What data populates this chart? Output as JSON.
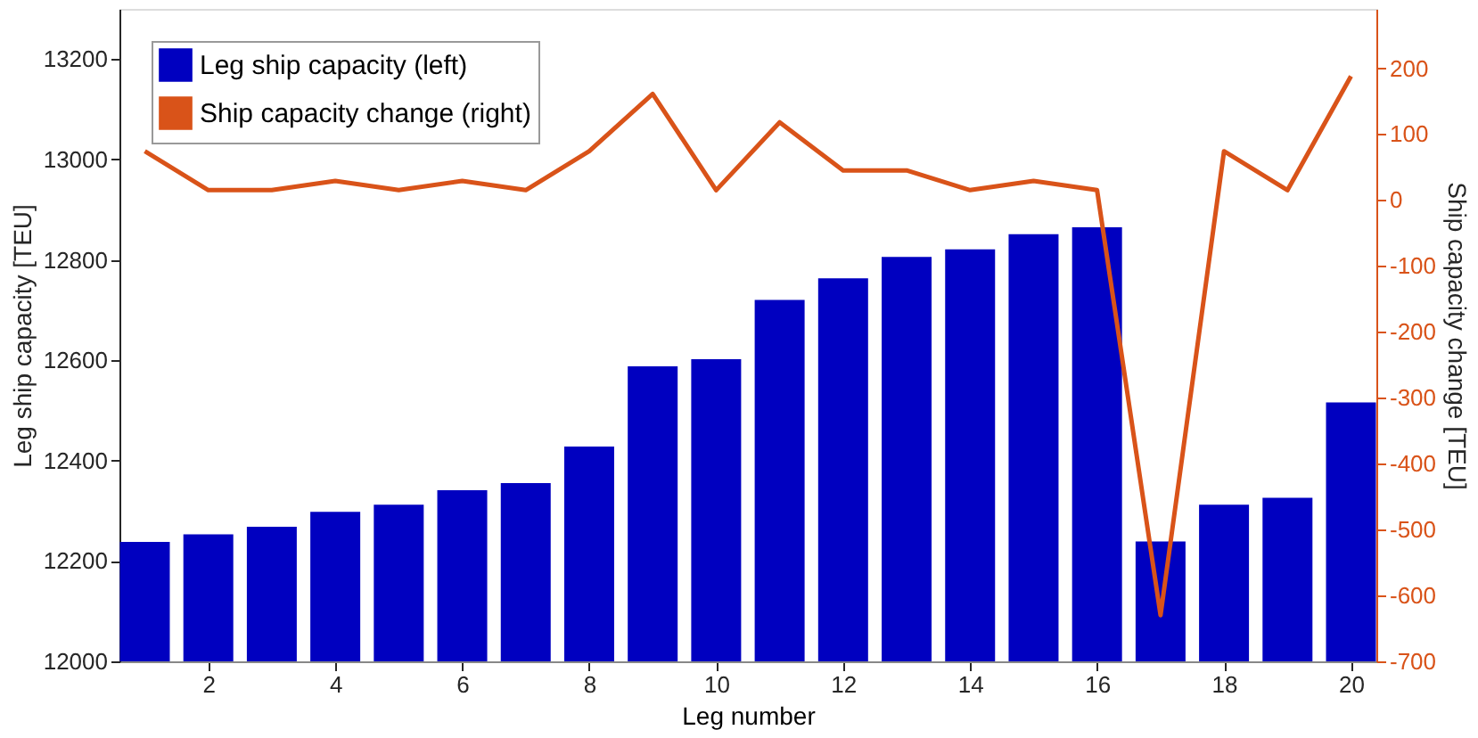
{
  "chart_data": {
    "type": "bar",
    "xlabel": "Leg number",
    "ylabel": "Leg ship capacity [TEU]",
    "y2label": "Ship capacity change [TEU]",
    "x": [
      1,
      2,
      3,
      4,
      5,
      6,
      7,
      8,
      9,
      10,
      11,
      12,
      13,
      14,
      15,
      16,
      17,
      18,
      19,
      20
    ],
    "series": [
      {
        "name": "Leg ship capacity (left)",
        "color": "#0000c0",
        "values": [
          12238,
          12253,
          12268,
          12298,
          12312,
          12341,
          12355,
          12428,
          12588,
          12602,
          12720,
          12763,
          12806,
          12821,
          12851,
          12865,
          12239,
          12312,
          12326,
          12516
        ]
      },
      {
        "name": "Ship capacity change (right)",
        "color": "#d95319",
        "type": "line",
        "axis": "y2",
        "values": [
          74,
          15,
          15,
          29,
          15,
          29,
          15,
          74,
          161,
          15,
          118,
          45,
          45,
          15,
          29,
          15,
          -630,
          74,
          15,
          188
        ]
      }
    ],
    "xlim": [
      0.6,
      20.4
    ],
    "xticks": [
      2,
      4,
      6,
      8,
      10,
      12,
      14,
      16,
      18,
      20
    ],
    "ylim": [
      12000,
      13300
    ],
    "yticks": [
      12000,
      12200,
      12400,
      12600,
      12800,
      13000,
      13200
    ],
    "y2lim": [
      -700,
      290
    ],
    "y2ticks": [
      -700,
      -600,
      -500,
      -400,
      -300,
      -200,
      -100,
      0,
      100,
      200
    ],
    "grid": false,
    "legend": "top left",
    "marker": "none",
    "line_style": "solid"
  }
}
